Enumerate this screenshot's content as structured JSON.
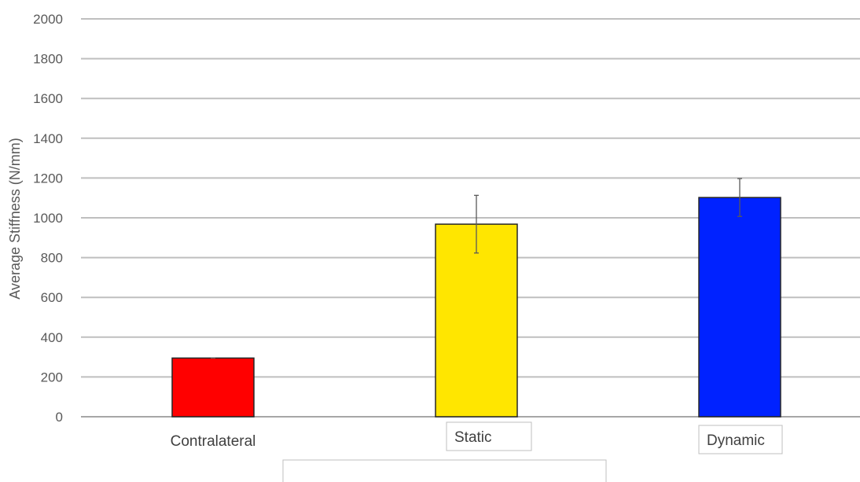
{
  "chart_data": {
    "type": "bar",
    "title": "",
    "xlabel": "",
    "ylabel": "Average Stiffness (N/mm)",
    "ylim": [
      0,
      2000
    ],
    "yticks": [
      0,
      200,
      400,
      600,
      800,
      1000,
      1200,
      1400,
      1600,
      1800,
      2000
    ],
    "grid": true,
    "legend": "none",
    "categories": [
      "Contralateral",
      "Static",
      "Dynamic"
    ],
    "values": [
      295,
      968,
      1102
    ],
    "error": [
      0,
      145,
      95
    ],
    "colors": [
      "#ff0000",
      "#ffe600",
      "#0022ff"
    ]
  }
}
